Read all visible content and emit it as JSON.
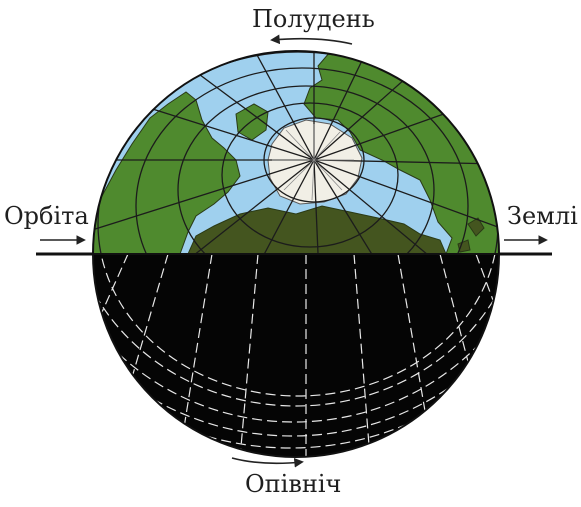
{
  "labels": {
    "top": "Полудень",
    "bottom": "Опівніч",
    "left": "Орбіта",
    "right": "Землі"
  },
  "colors": {
    "ocean": "#9fd0ee",
    "land": "#4f8a2e",
    "land_dark": "#44551f",
    "ice": "#f1efe6",
    "night": "#050505",
    "grid_day": "#1c1c1c",
    "grid_night": "#e8e8e8",
    "orbit_line": "#111111",
    "text": "#1f1f1f"
  }
}
